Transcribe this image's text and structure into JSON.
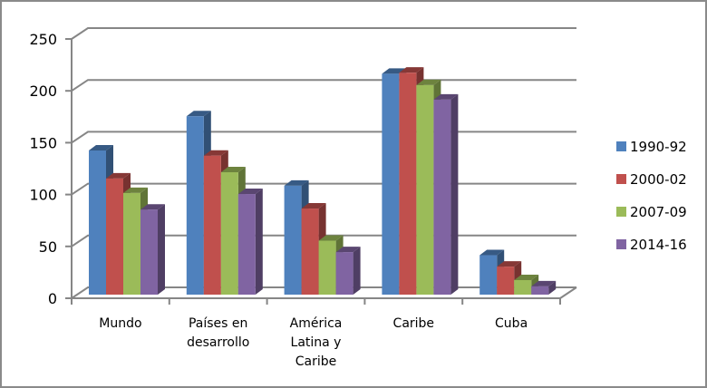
{
  "chart_data": {
    "type": "bar",
    "title": "",
    "xlabel": "",
    "ylabel": "",
    "ylim": [
      0,
      250
    ],
    "yticks": [
      0,
      50,
      100,
      150,
      200,
      250
    ],
    "grid": true,
    "legend_position": "right",
    "categories": [
      "Mundo",
      "Países en desarrollo",
      "América Latina y Caribe",
      "Caribe",
      "Cuba"
    ],
    "category_label_lines": [
      [
        "Mundo"
      ],
      [
        "Países en",
        "desarrollo"
      ],
      [
        "América",
        "Latina y",
        "Caribe"
      ],
      [
        "Caribe"
      ],
      [
        "Cuba"
      ]
    ],
    "series": [
      {
        "name": "1990-92",
        "color": "#4F81BD",
        "values": [
          139,
          172,
          105,
          213,
          38
        ]
      },
      {
        "name": "2000-02",
        "color": "#C0504D",
        "values": [
          112,
          134,
          83,
          214,
          27
        ]
      },
      {
        "name": "2007-09",
        "color": "#9BBB59",
        "values": [
          98,
          118,
          52,
          202,
          14
        ]
      },
      {
        "name": "2014-16",
        "color": "#8064A2",
        "values": [
          82,
          97,
          41,
          188,
          8
        ]
      }
    ]
  }
}
